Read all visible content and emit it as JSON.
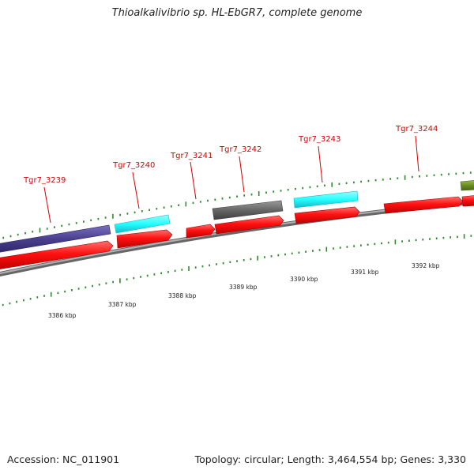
{
  "title": "Thioalkalivibrio sp. HL-EbGR7, complete genome",
  "footer": {
    "accession": "Accession: NC_011901",
    "summary": "Topology: circular; Length: 3,464,554 bp; Genes: 3,330"
  },
  "colors": {
    "cds": "#ff1111",
    "gene_blue": "#4a3f8f",
    "gene_cyan": "#22ffff",
    "gene_gray": "#666666",
    "gene_olive": "#6b8e23",
    "backbone": "#8a8a8a",
    "tick": "#2e8b2e",
    "label": "#d40000"
  },
  "scale_labels": [
    "3386 kbp",
    "3387 kbp",
    "3388 kbp",
    "3389 kbp",
    "3390 kbp",
    "3391 kbp",
    "3392 kbp"
  ],
  "gene_labels": [
    "Tgr7_3239",
    "Tgr7_3240",
    "Tgr7_3241",
    "Tgr7_3242",
    "Tgr7_3243",
    "Tgr7_3244"
  ]
}
